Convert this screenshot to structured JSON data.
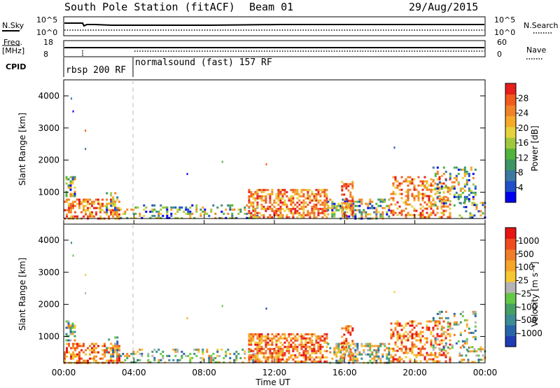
{
  "header": {
    "station": "South Pole Station (fitACF)",
    "beam": "Beam 01",
    "date": "29/Aug/2015"
  },
  "status_panels": {
    "nsky_label": "N.Sky",
    "nsky_ticks": [
      "10^5",
      "10^0"
    ],
    "nsearch_label": "N.Search",
    "freq_label": "Freq.",
    "freq_unit": "[MHz]",
    "freq_ticks": [
      "18",
      "8"
    ],
    "nave_label": "Nave",
    "nave_ticks": [
      "60",
      "0"
    ],
    "cpid_label": "CPID",
    "cpid_segments": [
      {
        "label": "rbsp 200 RF",
        "start_hour": 0,
        "end_hour": 4
      },
      {
        "label": "normalsound (fast) 157 RF",
        "start_hour": 4,
        "end_hour": 24
      }
    ]
  },
  "chart_data": [
    {
      "type": "heatmap",
      "title": "",
      "xlabel": "Time UT",
      "ylabel": "Slant Range [km]",
      "x_ticks": [
        "00:00",
        "04:00",
        "08:00",
        "12:00",
        "16:00",
        "20:00",
        "00:00"
      ],
      "x_range_hours": [
        0,
        24
      ],
      "y_ticks": [
        1000,
        2000,
        3000,
        4000
      ],
      "ylim": [
        180,
        4500
      ],
      "colorbar": {
        "label": "Power [dB]",
        "ticks": [
          "4",
          "8",
          "12",
          "16",
          "20",
          "24",
          "28"
        ],
        "colors": [
          "#0000f0",
          "#2050c8",
          "#3c78a0",
          "#3c9664",
          "#50b43c",
          "#a0c83c",
          "#e6d23c",
          "#f5aa28",
          "#f08228",
          "#f05a1e",
          "#e61e1e"
        ]
      }
    },
    {
      "type": "heatmap",
      "title": "",
      "xlabel": "Time UT",
      "ylabel": "Slant Range [km]",
      "x_ticks": [
        "00:00",
        "04:00",
        "08:00",
        "12:00",
        "16:00",
        "20:00",
        "00:00"
      ],
      "x_range_hours": [
        0,
        24
      ],
      "y_ticks": [
        1000,
        2000,
        3000,
        4000
      ],
      "ylim": [
        180,
        4500
      ],
      "colorbar": {
        "label": "Velocity [m s⁻¹]",
        "ticks": [
          "1000",
          "500",
          "100",
          "25",
          "-25",
          "-100",
          "-500",
          "-1000"
        ],
        "colors": [
          "#1e3cb4",
          "#2864aa",
          "#3c8c96",
          "#46a064",
          "#64c846",
          "#b4b4b4",
          "#f5c832",
          "#f5a528",
          "#f07d28",
          "#f04b1e",
          "#e61414"
        ]
      }
    }
  ]
}
